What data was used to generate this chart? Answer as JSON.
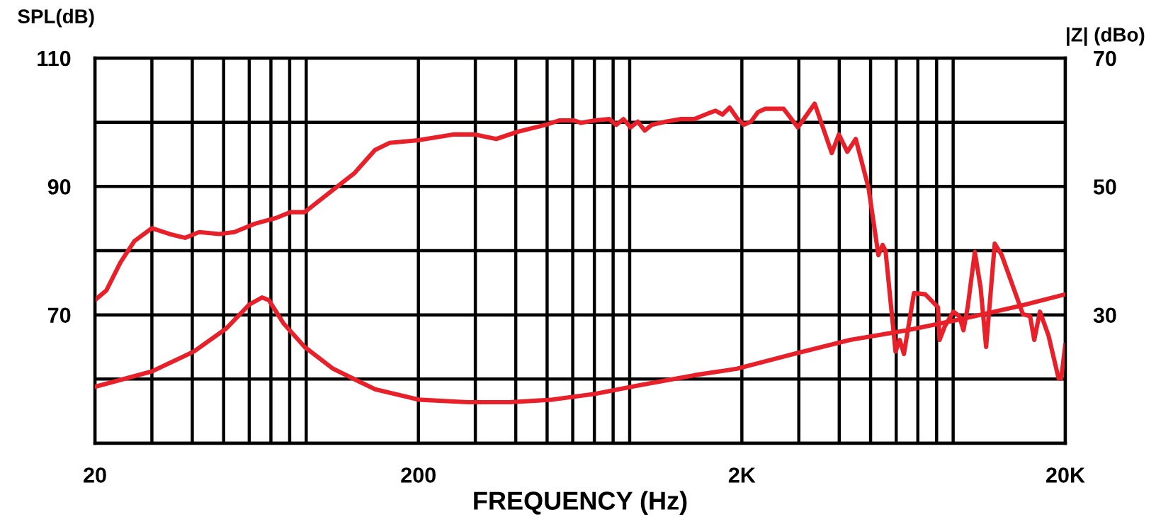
{
  "chart_data": {
    "type": "line",
    "xlabel": "FREQUENCY (Hz)",
    "ylabel": "SPL(dB)",
    "y2label": "|Z| (dBo)",
    "log": "x",
    "grid": true,
    "line_style": "solid",
    "xlim": [
      20,
      20000
    ],
    "xticks": [
      {
        "value": 20,
        "label": "20"
      },
      {
        "value": 30,
        "label": null
      },
      {
        "value": 40,
        "label": null
      },
      {
        "value": 50,
        "label": null
      },
      {
        "value": 60,
        "label": null
      },
      {
        "value": 70,
        "label": null
      },
      {
        "value": 80,
        "label": null
      },
      {
        "value": 90,
        "label": null
      },
      {
        "value": 200,
        "label": "200"
      },
      {
        "value": 300,
        "label": null
      },
      {
        "value": 400,
        "label": null
      },
      {
        "value": 500,
        "label": null
      },
      {
        "value": 600,
        "label": null
      },
      {
        "value": 700,
        "label": null
      },
      {
        "value": 800,
        "label": null
      },
      {
        "value": 900,
        "label": null
      },
      {
        "value": 2000,
        "label": "2K"
      },
      {
        "value": 3000,
        "label": null
      },
      {
        "value": 4000,
        "label": null
      },
      {
        "value": 5000,
        "label": null
      },
      {
        "value": 6000,
        "label": null
      },
      {
        "value": 7000,
        "label": null
      },
      {
        "value": 8000,
        "label": null
      },
      {
        "value": 9000,
        "label": null
      },
      {
        "value": 20000,
        "label": "20K"
      }
    ],
    "ylim": [
      50,
      110
    ],
    "yticks": [
      {
        "value": 50,
        "label": null
      },
      {
        "value": 60,
        "label": null
      },
      70,
      {
        "value": 80,
        "label": null
      },
      90,
      {
        "value": 100,
        "label": null
      },
      110
    ],
    "y2lim": [
      10,
      70
    ],
    "y2ticks": [
      30,
      50,
      70
    ],
    "series": [
      {
        "color": "#e8202a",
        "x": [
          20,
          21.7,
          24,
          26.5,
          30,
          34,
          38,
          42,
          48.5,
          54,
          62.5,
          72.7,
          80.4,
          89,
          103.5,
          127,
          147,
          163,
          200,
          256,
          299,
          348,
          404,
          494,
          547,
          604,
          636,
          703,
          778,
          818,
          861,
          906,
          953,
          1002,
          1053,
          1165,
          1289,
          1426,
          1577,
          1659,
          1742,
          1833,
          1929,
          2028,
          2134,
          2245,
          2361,
          2483,
          2692,
          2979,
          3358,
          3793,
          3990,
          4237,
          4499,
          4931,
          5286,
          5447,
          5561,
          5971,
          6153,
          6338,
          6810,
          7380,
          8077,
          8170,
          8494,
          9021,
          9397,
          9685,
          9980,
          10500,
          10940,
          11380,
          12100,
          12720,
          14790,
          15560,
          16030,
          16690,
          17740,
          19060,
          19420,
          20000
        ],
        "values": [
          72.3,
          73.8,
          78.2,
          81.5,
          83.5,
          82.6,
          82.0,
          82.9,
          82.6,
          82.9,
          84.2,
          85.1,
          86.0,
          86.0,
          88.6,
          92.1,
          95.7,
          96.8,
          97.2,
          98.1,
          98.1,
          97.4,
          98.5,
          99.6,
          100.3,
          100.3,
          99.9,
          100.3,
          100.5,
          99.6,
          100.5,
          99.2,
          100.1,
          98.7,
          99.6,
          100.1,
          100.5,
          100.5,
          101.4,
          101.8,
          101.2,
          102.3,
          100.7,
          99.6,
          100.1,
          101.6,
          102.1,
          102.1,
          102.1,
          99.2,
          102.9,
          95.2,
          98.1,
          95.4,
          97.4,
          89.7,
          79.3,
          80.9,
          80.0,
          64.3,
          66.1,
          63.9,
          73.4,
          73.2,
          71.2,
          66.1,
          68.3,
          70.5,
          69.8,
          67.6,
          71.2,
          79.8,
          74.3,
          65.0,
          81.1,
          79.3,
          70.1,
          69.8,
          66.1,
          70.5,
          66.8,
          60.1,
          60.1,
          65.4
        ]
      },
      {
        "color": "#e8202a",
        "axis": "y2",
        "x": [
          20,
          30,
          40.5,
          51,
          60,
          65.7,
          69,
          76.5,
          89,
          109,
          147,
          200,
          284,
          384,
          520,
          703,
          953,
          1426,
          1929,
          2885,
          4325,
          6473,
          9685,
          14490,
          20000
        ],
        "values": [
          18.8,
          21.2,
          24.3,
          27.9,
          31.6,
          32.7,
          32.3,
          28.7,
          25.0,
          21.6,
          18.4,
          16.8,
          16.4,
          16.4,
          16.8,
          17.7,
          19.0,
          20.6,
          21.6,
          23.9,
          26.1,
          27.6,
          29.4,
          31.4,
          33.2
        ]
      }
    ]
  }
}
